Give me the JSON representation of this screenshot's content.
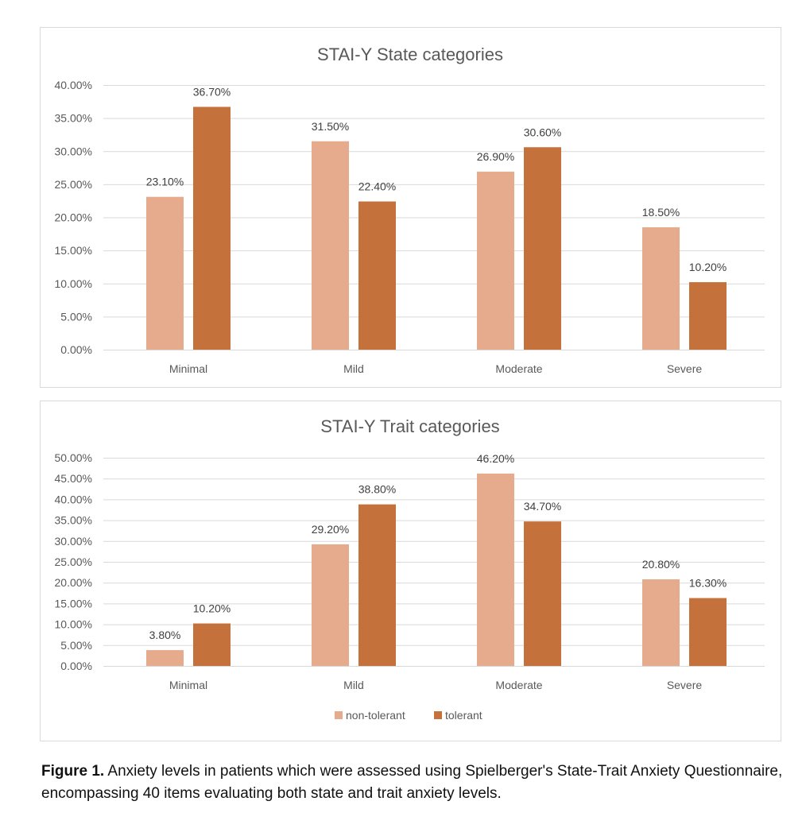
{
  "colors": {
    "non_tolerant": "#E6AA8D",
    "tolerant": "#C5713C",
    "grid": "#D9D9D9",
    "text": "#595959"
  },
  "legend": [
    "non-tolerant",
    "tolerant"
  ],
  "chart_data": [
    {
      "type": "bar",
      "title": "STAI-Y State categories",
      "categories": [
        "Minimal",
        "Mild",
        "Moderate",
        "Severe"
      ],
      "series": [
        {
          "name": "non-tolerant",
          "values": [
            23.1,
            31.5,
            26.9,
            18.5
          ]
        },
        {
          "name": "tolerant",
          "values": [
            36.7,
            22.4,
            30.6,
            10.2
          ]
        }
      ],
      "ylim": [
        0,
        40
      ],
      "yticks": [
        0,
        5,
        10,
        15,
        20,
        25,
        30,
        35,
        40
      ],
      "grid": true,
      "legend": "none"
    },
    {
      "type": "bar",
      "title": "STAI-Y Trait categories",
      "categories": [
        "Minimal",
        "Mild",
        "Moderate",
        "Severe"
      ],
      "series": [
        {
          "name": "non-tolerant",
          "values": [
            3.8,
            29.2,
            46.2,
            20.8
          ]
        },
        {
          "name": "tolerant",
          "values": [
            10.2,
            38.8,
            34.7,
            16.3
          ]
        }
      ],
      "ylim": [
        0,
        50
      ],
      "yticks": [
        0,
        5,
        10,
        15,
        20,
        25,
        30,
        35,
        40,
        45,
        50
      ],
      "grid": true,
      "legend": "bottom"
    }
  ],
  "caption": {
    "label": "Figure 1.",
    "text": " Anxiety levels in patients which were assessed using Spielberger's State-Trait Anxiety Questionnaire, encompassing 40 items evaluating both state and trait anxiety levels."
  }
}
